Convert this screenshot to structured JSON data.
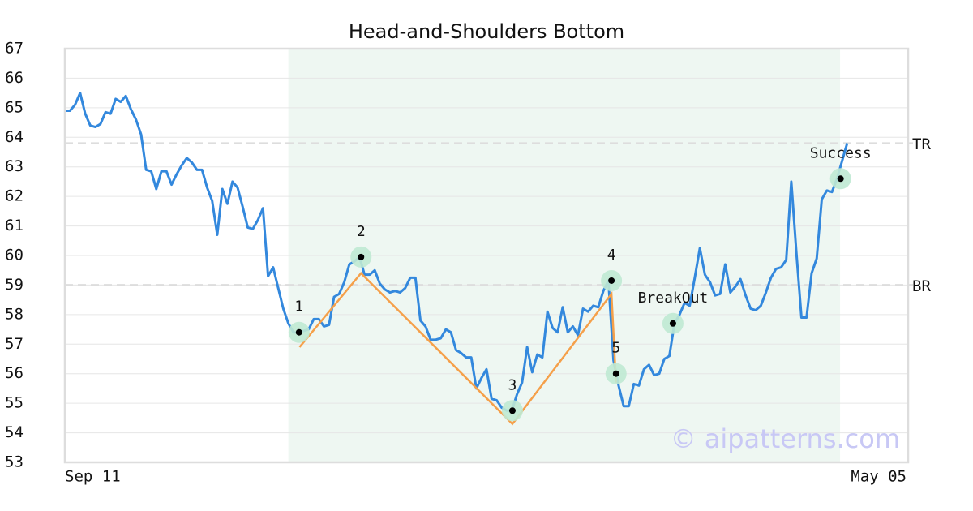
{
  "chart_data": {
    "type": "line",
    "title": "Head-and-Shoulders Bottom",
    "watermark": "© aipatterns.com",
    "ylim": [
      53,
      67
    ],
    "yticks": [
      53,
      54,
      55,
      56,
      57,
      58,
      59,
      60,
      61,
      62,
      63,
      64,
      65,
      66,
      67
    ],
    "grid": true,
    "categories": [
      "Sep 11",
      null,
      null,
      null,
      null,
      null,
      null,
      null,
      null,
      null,
      null,
      null,
      null,
      null,
      null,
      null,
      null,
      null,
      null,
      null,
      null,
      null,
      null,
      null,
      null,
      null,
      null,
      null,
      null,
      null,
      null,
      null,
      null,
      null,
      null,
      null,
      null,
      null,
      null,
      null,
      null,
      null,
      null,
      null,
      null,
      null,
      null,
      null,
      null,
      null,
      null,
      null,
      null,
      null,
      null,
      null,
      null,
      null,
      null,
      null,
      null,
      null,
      null,
      null,
      null,
      null,
      null,
      null,
      null,
      null,
      null,
      null,
      null,
      null,
      null,
      null,
      null,
      null,
      null,
      null,
      null,
      null,
      null,
      null,
      null,
      null,
      null,
      null,
      null,
      null,
      null,
      null,
      null,
      null,
      null,
      null,
      null,
      null,
      null,
      null,
      null,
      null,
      null,
      null,
      null,
      null,
      null,
      null,
      null,
      null,
      null,
      null,
      null,
      null,
      null,
      null,
      null,
      null,
      null,
      null,
      null,
      null,
      null,
      null,
      null,
      null,
      null,
      null,
      null,
      null,
      null,
      null,
      null,
      null,
      null,
      null,
      null,
      null,
      null,
      null,
      null,
      null,
      null,
      null,
      null,
      null,
      null,
      null,
      null,
      null,
      null,
      null,
      null,
      null,
      null,
      null,
      null,
      null,
      null,
      null,
      null,
      null,
      null,
      null,
      null,
      null,
      "May 05"
    ],
    "series": [
      {
        "color": "#3388dd",
        "values": [
          64.9,
          64.9,
          65.1,
          65.5,
          64.8,
          64.4,
          64.35,
          64.45,
          64.85,
          64.8,
          65.3,
          65.2,
          65.4,
          64.95,
          64.6,
          64.1,
          62.9,
          62.85,
          62.25,
          62.85,
          62.85,
          62.4,
          62.75,
          63.05,
          63.3,
          63.15,
          62.9,
          62.9,
          62.3,
          61.85,
          60.7,
          62.25,
          61.75,
          62.5,
          62.3,
          61.65,
          60.95,
          60.9,
          61.2,
          61.6,
          59.3,
          59.6,
          58.9,
          58.2,
          57.7,
          57.4,
          57.4,
          57.45,
          57.5,
          57.85,
          57.85,
          57.6,
          57.65,
          58.6,
          58.7,
          59.1,
          59.7,
          59.8,
          59.95,
          59.35,
          59.35,
          59.5,
          59.05,
          58.85,
          58.75,
          58.8,
          58.75,
          58.9,
          59.25,
          59.25,
          57.8,
          57.6,
          57.15,
          57.15,
          57.2,
          57.5,
          57.4,
          56.8,
          56.7,
          56.55,
          56.55,
          55.5,
          55.85,
          56.15,
          55.15,
          55.1,
          54.85,
          54.75,
          54.75,
          55.3,
          55.7,
          56.9,
          56.05,
          56.65,
          56.55,
          58.1,
          57.55,
          57.4,
          58.25,
          57.4,
          57.6,
          57.3,
          58.2,
          58.1,
          58.3,
          58.25,
          58.8,
          59.15,
          56.45,
          55.6,
          54.9,
          54.9,
          55.65,
          55.6,
          56.15,
          56.3,
          55.95,
          56.0,
          56.5,
          56.6,
          57.7,
          58.0,
          58.4,
          58.3,
          59.25,
          60.25,
          59.35,
          59.1,
          58.65,
          58.7,
          59.7,
          58.75,
          58.95,
          59.2,
          58.65,
          58.2,
          58.15,
          58.3,
          58.75,
          59.25,
          59.55,
          59.6,
          59.85,
          62.5,
          60.1,
          57.9,
          57.9,
          59.4,
          59.9,
          61.9,
          62.2,
          62.15,
          62.6,
          63.2,
          63.8,
          null,
          null,
          null,
          null,
          null,
          null,
          null,
          null,
          null,
          null,
          null,
          null
        ]
      }
    ],
    "shade": [
      44,
      152.6
    ],
    "pattern": {
      "color": "#f5a04a",
      "x": [
        46.2,
        58.3,
        88.1,
        107.6,
        108.5
      ],
      "values": [
        56.9,
        59.4,
        54.3,
        58.7,
        55.7
      ]
    },
    "points": [
      {
        "label": "1",
        "index": 46.1,
        "value": 57.4
      },
      {
        "label": "2",
        "index": 58.3,
        "value": 59.95
      },
      {
        "label": "3",
        "index": 88.1,
        "value": 54.75
      },
      {
        "label": "4",
        "index": 107.6,
        "value": 59.15
      },
      {
        "label": "5",
        "index": 108.5,
        "value": 56.0
      },
      {
        "label": "BreakOut",
        "index": 119.7,
        "value": 57.7
      },
      {
        "label": "Success",
        "index": 152.7,
        "value": 62.6
      }
    ],
    "ref_lines": [
      {
        "label": "TR",
        "value": 63.8
      },
      {
        "label": "BR",
        "value": 59.0
      }
    ]
  }
}
